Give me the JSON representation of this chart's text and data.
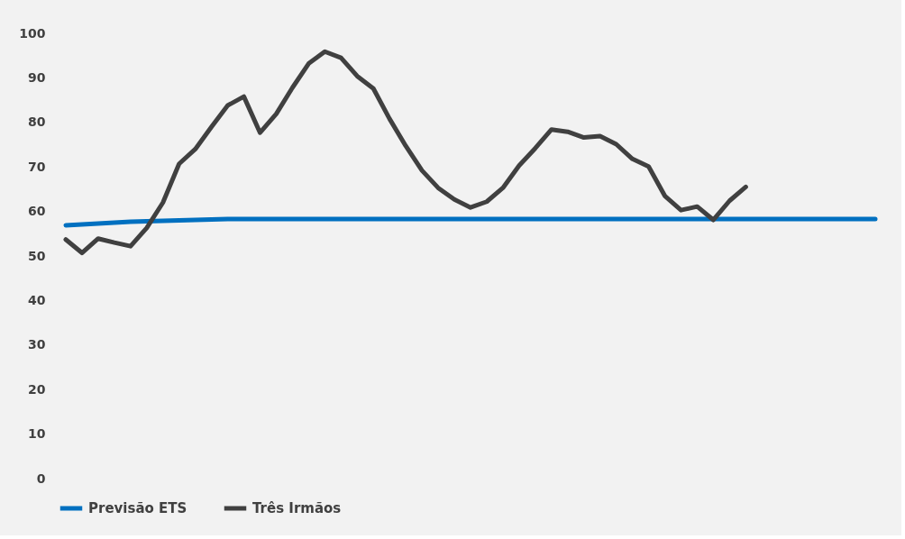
{
  "chart_data": {
    "type": "line",
    "categories": [
      null,
      null,
      null,
      null,
      null,
      null,
      null,
      null,
      null,
      null,
      null,
      null,
      null,
      null,
      null,
      null,
      null,
      null,
      null,
      null,
      null,
      null,
      null,
      null,
      null,
      null,
      null,
      null,
      null,
      null,
      null,
      null,
      null,
      null,
      null,
      null,
      null,
      null,
      null,
      null,
      null,
      null,
      null,
      null,
      null,
      null,
      null,
      null,
      null,
      null,
      null
    ],
    "ylim": [
      0,
      100
    ],
    "yticks": [
      0,
      10,
      20,
      30,
      40,
      50,
      60,
      70,
      80,
      90,
      100
    ],
    "grid": false,
    "legend": "bottom",
    "tick_labels": "y",
    "line_style": "solid",
    "marker": "none",
    "series": [
      {
        "name": "Previsão ETS",
        "color": "#0070c0",
        "values": [
          56.9,
          57.1,
          57.3,
          57.5,
          57.7,
          57.8,
          57.9,
          58.0,
          58.1,
          58.2,
          58.3,
          58.3,
          58.3,
          58.3,
          58.3,
          58.3,
          58.3,
          58.3,
          58.3,
          58.3,
          58.3,
          58.3,
          58.3,
          58.3,
          58.3,
          58.3,
          58.3,
          58.3,
          58.3,
          58.3,
          58.3,
          58.3,
          58.3,
          58.3,
          58.3,
          58.3,
          58.3,
          58.3,
          58.3,
          58.3,
          58.3,
          58.3,
          58.3,
          58.3,
          58.3,
          58.3,
          58.3,
          58.3,
          58.3,
          58.3,
          58.3
        ]
      },
      {
        "name": "Três Irmãos",
        "color": "#404040",
        "values": [
          53.7,
          50.7,
          53.9,
          53,
          52.2,
          56.3,
          62,
          70.7,
          74,
          79,
          83.8,
          85.8,
          77.7,
          81.9,
          87.8,
          93.2,
          95.9,
          94.5,
          90.4,
          87.6,
          80.8,
          74.7,
          69.2,
          65.3,
          62.7,
          60.9,
          62.2,
          65.3,
          70.3,
          74.2,
          78.4,
          77.9,
          76.6,
          76.9,
          75.1,
          71.8,
          70.1,
          63.5,
          60.3,
          61.1,
          58.1,
          62.4,
          65.5,
          null,
          null,
          null,
          null,
          null,
          null,
          null,
          null
        ]
      }
    ]
  }
}
